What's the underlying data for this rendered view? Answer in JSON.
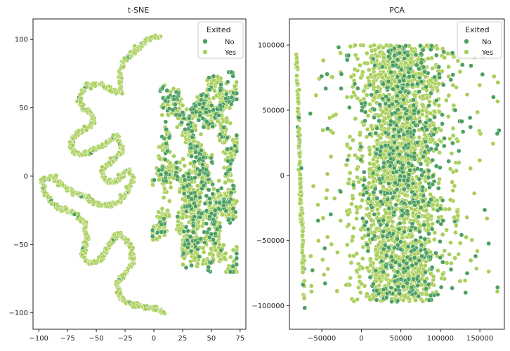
{
  "colors": {
    "no": "#4c9f63",
    "yes": "#a9cf5a",
    "edge": "#ffffff",
    "axis": "#222222"
  },
  "chart_data": [
    {
      "type": "scatter",
      "title": "t-SNE",
      "xlabel": "",
      "ylabel": "",
      "xlim": [
        -105,
        80
      ],
      "ylim": [
        -112,
        115
      ],
      "xticks": [
        -100,
        -75,
        -50,
        -25,
        0,
        25,
        50,
        75
      ],
      "yticks": [
        -100,
        -50,
        0,
        50,
        100
      ],
      "xtick_labels": [
        "−100",
        "−75",
        "−50",
        "−25",
        "0",
        "25",
        "50",
        "75"
      ],
      "ytick_labels": [
        "−100",
        "−50",
        "0",
        "50",
        "100"
      ],
      "grid": false,
      "legend": {
        "title": "Exited",
        "placement": "top-right",
        "entries": [
          "No",
          "Yes"
        ]
      },
      "series": [
        {
          "name": "No",
          "structure": "scattered points inside the blob (x 0 to 72, y -70 to 76) and along the curve"
        },
        {
          "name": "Yes",
          "structure": "long winding curve from (5, 103) to (10, -100) on the left, plus dense blob x 0 to 72, y -70 to 76"
        }
      ]
    },
    {
      "type": "scatter",
      "title": "PCA",
      "xlabel": "",
      "ylabel": "",
      "xlim": [
        -91000,
        181000
      ],
      "ylim": [
        -118000,
        120000
      ],
      "xticks": [
        -50000,
        0,
        50000,
        100000,
        150000
      ],
      "yticks": [
        -100000,
        -50000,
        0,
        50000,
        100000
      ],
      "xtick_labels": [
        "−50000",
        "0",
        "50000",
        "100000",
        "150000"
      ],
      "ytick_labels": [
        "−100000",
        "−50000",
        "0",
        "50000",
        "100000"
      ],
      "grid": false,
      "legend": {
        "title": "Exited",
        "placement": "top-right",
        "entries": [
          "No",
          "Yes"
        ]
      },
      "series": [
        {
          "name": "No",
          "structure": "points spread across main band x -45000 to 130000, y -100000 to 100000"
        },
        {
          "name": "Yes",
          "structure": "thin near-vertical line at x about -82000 to -72000 plus dense band x -25000 to 125000, y -100000 to 100000"
        }
      ]
    }
  ]
}
